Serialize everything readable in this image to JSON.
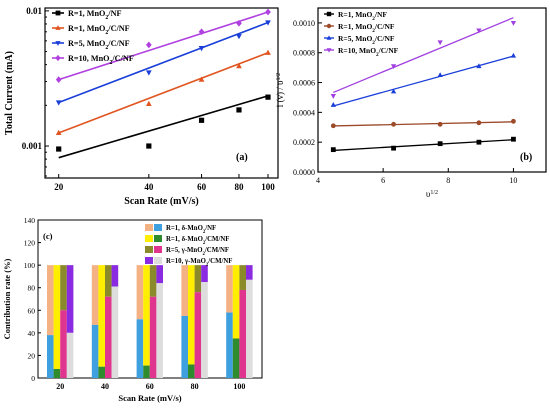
{
  "chart_data": [
    {
      "id": "a",
      "type": "scatter",
      "panel_label": "(a)",
      "xlabel": "Scan Rate (mV/s)",
      "ylabel": "Total Current (mA)",
      "xscale": "log",
      "yscale": "log",
      "xlim": [
        18,
        108
      ],
      "ylim": [
        0.00058,
        0.0105
      ],
      "xticks": [
        20,
        40,
        60,
        80,
        100
      ],
      "yticks": [
        {
          "v": 0.01,
          "label": "0.01"
        },
        {
          "v": 0.001,
          "label": "0.001"
        }
      ],
      "legend": "top-left",
      "series": [
        {
          "name": "R=1, MnO₂/NF",
          "color": "#000000",
          "marker": "square",
          "x": [
            20,
            40,
            60,
            80,
            100
          ],
          "y": [
            0.00095,
            0.001,
            0.00155,
            0.00185,
            0.0023
          ],
          "fit": [
            0.00082,
            0.00235
          ]
        },
        {
          "name": "R=1, MnO₂/C/NF",
          "color": "#e05520",
          "marker": "triangle-up",
          "x": [
            20,
            40,
            60,
            80,
            100
          ],
          "y": [
            0.00125,
            0.00205,
            0.0031,
            0.0039,
            0.0049
          ],
          "fit": [
            0.00125,
            0.0049
          ]
        },
        {
          "name": "R=5, MnO₂/C/NF",
          "color": "#1a3fd8",
          "marker": "triangle-down",
          "x": [
            20,
            40,
            60,
            80,
            100
          ],
          "y": [
            0.0021,
            0.0035,
            0.0053,
            0.0065,
            0.0082
          ],
          "fit": [
            0.0021,
            0.0082
          ]
        },
        {
          "name": "R=10, MnO₂/C/NF",
          "color": "#b040e0",
          "marker": "diamond",
          "x": [
            20,
            40,
            60,
            80,
            100
          ],
          "y": [
            0.0031,
            0.0056,
            0.007,
            0.0081,
            0.0098
          ],
          "fit": [
            0.0031,
            0.0098
          ]
        }
      ]
    },
    {
      "id": "b",
      "type": "scatter",
      "panel_label": "(b)",
      "xlabel": "υ",
      "xlabel_sup": "1/2",
      "ylabel": "i (v) / υ",
      "ylabel_sup": "1/2",
      "xlim": [
        4,
        11
      ],
      "ylim": [
        0,
        0.0011
      ],
      "xticks": [
        4,
        6,
        8,
        10
      ],
      "yticks": [
        0,
        0.0002,
        0.0004,
        0.0006,
        0.0008,
        0.001
      ],
      "ytick_labels": [
        "0.0000",
        "0.0002",
        "0.0004",
        "0.0006",
        "0.0008",
        "0.0010"
      ],
      "legend": "top-left",
      "series": [
        {
          "name": "R=1, MnO₂/NF",
          "color": "#000000",
          "marker": "square",
          "x": [
            4.47,
            6.32,
            7.75,
            8.94,
            10
          ],
          "y": [
            0.00015,
            0.00016,
            0.00019,
            0.0002,
            0.00022
          ]
        },
        {
          "name": "R=1, MnO₂/C/NF",
          "color": "#9c4a2a",
          "marker": "circle",
          "x": [
            4.47,
            6.32,
            7.75,
            8.94,
            10
          ],
          "y": [
            0.00031,
            0.00032,
            0.00032,
            0.00033,
            0.00034
          ]
        },
        {
          "name": "R=5, MnO₂/C/NF",
          "color": "#1a3fd8",
          "marker": "triangle-up",
          "x": [
            4.47,
            6.32,
            7.75,
            8.94,
            10
          ],
          "y": [
            0.00045,
            0.00054,
            0.00065,
            0.00071,
            0.00078
          ]
        },
        {
          "name": "R=10, MnO₂/C/NF",
          "color": "#a040e0",
          "marker": "triangle-down",
          "x": [
            4.47,
            6.32,
            7.75,
            8.94,
            10
          ],
          "y": [
            0.00051,
            0.00071,
            0.00087,
            0.00095,
            0.001
          ]
        }
      ]
    },
    {
      "id": "c",
      "type": "bar",
      "panel_label": "(c)",
      "xlabel": "Scan Rate (mV/s)",
      "ylabel": "Contribution rate (%)",
      "ylim": [
        0,
        140
      ],
      "yticks": [
        0,
        20,
        40,
        60,
        80,
        100,
        120,
        140
      ],
      "categories": [
        "20",
        "40",
        "60",
        "80",
        "100"
      ],
      "legend": "top-right",
      "series": [
        {
          "name": "R=1, δ-MnO₂/NF",
          "color_capacitive": "#3fa0e0",
          "color_diffusion": "#f4b183",
          "values": [
            38,
            47,
            52,
            55,
            58
          ]
        },
        {
          "name": "R=1, δ-MnO₂/CM/NF",
          "color_capacitive": "#2e8b2e",
          "color_diffusion": "#ffee00",
          "values": [
            8,
            10,
            11,
            12,
            35
          ]
        },
        {
          "name": "R=5, γ-MnO₂/CM/NF",
          "color_capacitive": "#e0358f",
          "color_diffusion": "#8a8a2a",
          "values": [
            60,
            72,
            72,
            76,
            78
          ]
        },
        {
          "name": "R=10, γ-MnO₂/CM/NF",
          "color_capacitive": "#dddddd",
          "color_diffusion": "#8a2be2",
          "values": [
            40,
            81,
            84,
            85,
            87
          ]
        }
      ]
    }
  ]
}
